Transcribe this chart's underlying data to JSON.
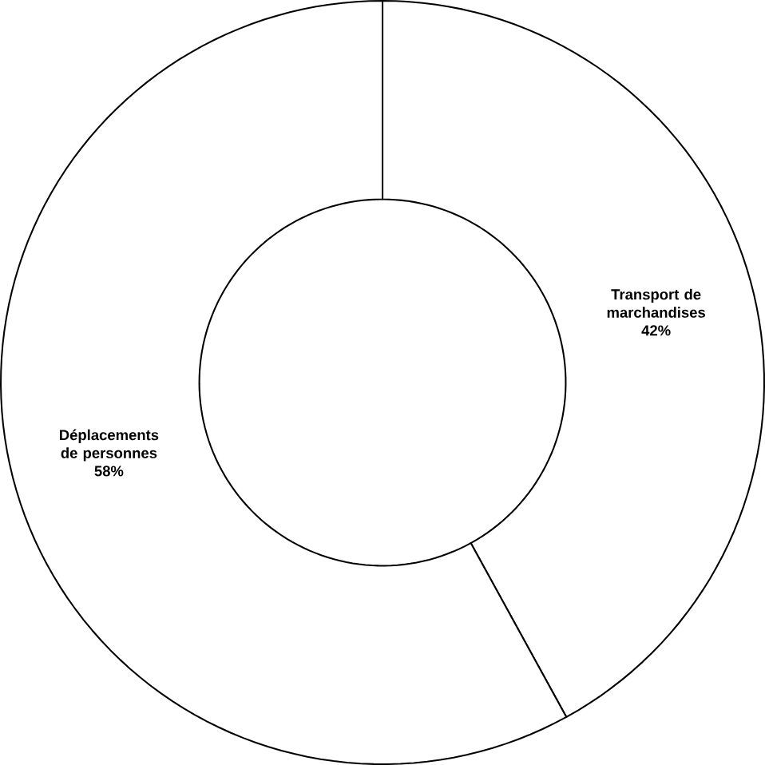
{
  "chart_data": {
    "type": "donut",
    "categories": [
      "Transport de marchandises",
      "Déplacements de personnes"
    ],
    "values": [
      42,
      58
    ],
    "value_labels": [
      "42%",
      "58%"
    ],
    "colors": [
      "#ffffff",
      "#ffffff"
    ]
  }
}
